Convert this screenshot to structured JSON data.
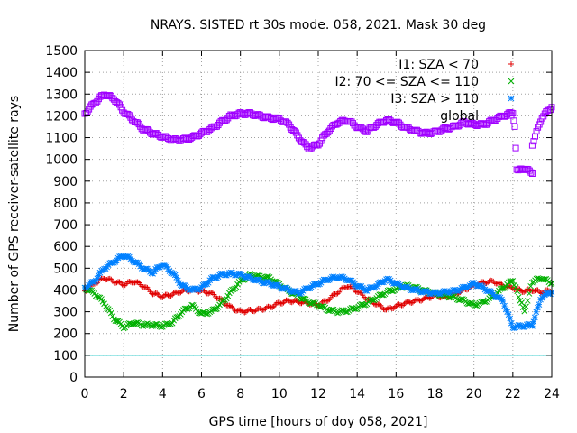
{
  "chart_data": {
    "type": "scatter",
    "title": "NRAYS. SISTED rt 30s mode. 058, 2021. Mask 30 deg",
    "xlabel": "GPS time [hours of doy 058, 2021]",
    "ylabel": "Number of GPS receiver-satellite rays",
    "xlim": [
      0,
      24
    ],
    "ylim": [
      0,
      1500
    ],
    "x_ticks": [
      0,
      2,
      4,
      6,
      8,
      10,
      12,
      14,
      16,
      18,
      20,
      22,
      24
    ],
    "y_ticks": [
      0,
      100,
      200,
      300,
      400,
      500,
      600,
      700,
      800,
      900,
      1000,
      1100,
      1200,
      1300,
      1400,
      1500
    ],
    "grid": true,
    "legend_position": "top-right",
    "threshold_line": {
      "y": 100,
      "color": "#00c0c0"
    },
    "series": [
      {
        "name": "I1: SZA < 70",
        "marker": "+",
        "color": "#e00000",
        "points": [
          [
            0,
            395
          ],
          [
            0.5,
            430
          ],
          [
            1,
            455
          ],
          [
            1.5,
            440
          ],
          [
            2,
            425
          ],
          [
            2.5,
            440
          ],
          [
            3,
            420
          ],
          [
            3.5,
            385
          ],
          [
            4,
            370
          ],
          [
            4.5,
            380
          ],
          [
            5,
            395
          ],
          [
            5.5,
            400
          ],
          [
            6,
            395
          ],
          [
            6.5,
            385
          ],
          [
            7,
            355
          ],
          [
            7.5,
            320
          ],
          [
            8,
            300
          ],
          [
            8.5,
            305
          ],
          [
            9,
            310
          ],
          [
            9.5,
            320
          ],
          [
            10,
            340
          ],
          [
            10.5,
            350
          ],
          [
            11,
            345
          ],
          [
            11.5,
            340
          ],
          [
            12,
            330
          ],
          [
            12.5,
            355
          ],
          [
            13,
            390
          ],
          [
            13.5,
            420
          ],
          [
            14,
            395
          ],
          [
            14.5,
            360
          ],
          [
            15,
            335
          ],
          [
            15.5,
            310
          ],
          [
            16,
            325
          ],
          [
            16.5,
            340
          ],
          [
            17,
            350
          ],
          [
            17.5,
            360
          ],
          [
            18,
            375
          ],
          [
            18.5,
            365
          ],
          [
            19,
            380
          ],
          [
            19.5,
            400
          ],
          [
            20,
            420
          ],
          [
            20.5,
            435
          ],
          [
            21,
            440
          ],
          [
            21.5,
            420
          ],
          [
            22,
            410
          ],
          [
            22.5,
            395
          ],
          [
            23,
            400
          ],
          [
            23.5,
            390
          ],
          [
            24,
            400
          ]
        ]
      },
      {
        "name": "I2: 70 <= SZA <= 110",
        "marker": "x",
        "color": "#00b000",
        "points": [
          [
            0,
            410
          ],
          [
            0.5,
            385
          ],
          [
            1,
            340
          ],
          [
            1.5,
            270
          ],
          [
            2,
            230
          ],
          [
            2.5,
            250
          ],
          [
            3,
            240
          ],
          [
            3.5,
            240
          ],
          [
            4,
            235
          ],
          [
            4.5,
            250
          ],
          [
            5,
            300
          ],
          [
            5.5,
            330
          ],
          [
            6,
            290
          ],
          [
            6.5,
            300
          ],
          [
            7,
            335
          ],
          [
            7.5,
            390
          ],
          [
            8,
            440
          ],
          [
            8.5,
            470
          ],
          [
            9,
            460
          ],
          [
            9.5,
            455
          ],
          [
            10,
            425
          ],
          [
            10.5,
            395
          ],
          [
            11,
            370
          ],
          [
            11.5,
            345
          ],
          [
            12,
            330
          ],
          [
            12.5,
            310
          ],
          [
            13,
            300
          ],
          [
            13.5,
            305
          ],
          [
            14,
            320
          ],
          [
            14.5,
            340
          ],
          [
            15,
            365
          ],
          [
            15.5,
            390
          ],
          [
            16,
            405
          ],
          [
            16.5,
            420
          ],
          [
            17,
            410
          ],
          [
            17.5,
            395
          ],
          [
            18,
            385
          ],
          [
            18.5,
            375
          ],
          [
            19,
            365
          ],
          [
            19.5,
            350
          ],
          [
            20,
            330
          ],
          [
            20.5,
            345
          ],
          [
            21,
            370
          ],
          [
            21.5,
            410
          ],
          [
            22,
            445
          ],
          [
            22.6,
            300
          ],
          [
            23,
            440
          ],
          [
            23.5,
            455
          ],
          [
            24,
            430
          ]
        ]
      },
      {
        "name": "I3: SZA > 110",
        "marker": "*",
        "color": "#0080ff",
        "points": [
          [
            0,
            410
          ],
          [
            0.5,
            440
          ],
          [
            1,
            500
          ],
          [
            1.5,
            530
          ],
          [
            2,
            560
          ],
          [
            2.5,
            535
          ],
          [
            3,
            500
          ],
          [
            3.5,
            480
          ],
          [
            4,
            520
          ],
          [
            4.5,
            480
          ],
          [
            5,
            420
          ],
          [
            5.5,
            400
          ],
          [
            6,
            410
          ],
          [
            6.5,
            450
          ],
          [
            7,
            470
          ],
          [
            7.5,
            475
          ],
          [
            8,
            470
          ],
          [
            8.5,
            455
          ],
          [
            9,
            440
          ],
          [
            9.5,
            430
          ],
          [
            10,
            415
          ],
          [
            10.5,
            400
          ],
          [
            11,
            385
          ],
          [
            11.5,
            410
          ],
          [
            12,
            430
          ],
          [
            12.5,
            450
          ],
          [
            13,
            460
          ],
          [
            13.5,
            450
          ],
          [
            14,
            420
          ],
          [
            14.5,
            400
          ],
          [
            15,
            420
          ],
          [
            15.5,
            450
          ],
          [
            16,
            430
          ],
          [
            16.5,
            410
          ],
          [
            17,
            400
          ],
          [
            17.5,
            390
          ],
          [
            18,
            385
          ],
          [
            18.5,
            390
          ],
          [
            19,
            395
          ],
          [
            19.5,
            410
          ],
          [
            20,
            430
          ],
          [
            20.5,
            410
          ],
          [
            21,
            380
          ],
          [
            21.5,
            350
          ],
          [
            22,
            230
          ],
          [
            22.5,
            235
          ],
          [
            23,
            240
          ],
          [
            23.2,
            300
          ],
          [
            23.5,
            370
          ],
          [
            24,
            390
          ]
        ]
      },
      {
        "name": "global",
        "marker": "square",
        "color": "#a000ff",
        "points": [
          [
            0,
            1210
          ],
          [
            0.5,
            1260
          ],
          [
            1,
            1300
          ],
          [
            1.5,
            1280
          ],
          [
            2,
            1220
          ],
          [
            2.5,
            1180
          ],
          [
            3,
            1140
          ],
          [
            3.5,
            1120
          ],
          [
            4,
            1105
          ],
          [
            4.5,
            1090
          ],
          [
            5,
            1090
          ],
          [
            5.5,
            1100
          ],
          [
            6,
            1120
          ],
          [
            6.5,
            1140
          ],
          [
            7,
            1170
          ],
          [
            7.5,
            1200
          ],
          [
            8,
            1210
          ],
          [
            8.5,
            1210
          ],
          [
            9,
            1200
          ],
          [
            9.5,
            1190
          ],
          [
            10,
            1185
          ],
          [
            10.5,
            1160
          ],
          [
            11,
            1100
          ],
          [
            11.5,
            1050
          ],
          [
            12,
            1070
          ],
          [
            12.5,
            1130
          ],
          [
            13,
            1170
          ],
          [
            13.5,
            1180
          ],
          [
            14,
            1150
          ],
          [
            14.5,
            1130
          ],
          [
            15,
            1160
          ],
          [
            15.5,
            1180
          ],
          [
            16,
            1170
          ],
          [
            16.5,
            1145
          ],
          [
            17,
            1130
          ],
          [
            17.5,
            1120
          ],
          [
            18,
            1125
          ],
          [
            18.5,
            1140
          ],
          [
            19,
            1150
          ],
          [
            19.5,
            1170
          ],
          [
            20,
            1160
          ],
          [
            20.5,
            1160
          ],
          [
            21,
            1180
          ],
          [
            21.5,
            1200
          ],
          [
            22,
            1215
          ],
          [
            22.1,
            1150
          ],
          [
            22.2,
            950
          ],
          [
            22.5,
            960
          ],
          [
            23,
            940
          ],
          [
            23,
            1070
          ],
          [
            23.5,
            1195
          ],
          [
            24,
            1240
          ]
        ]
      }
    ]
  }
}
